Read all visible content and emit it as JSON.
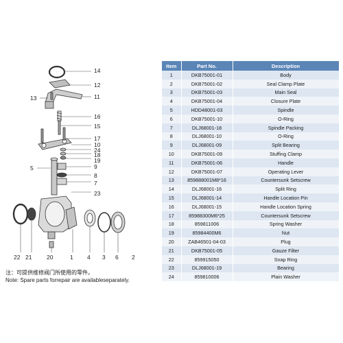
{
  "table": {
    "headers": [
      "Item",
      "Part No.",
      "Description"
    ],
    "rows": [
      [
        "1",
        "DKB75001-01",
        "Body"
      ],
      [
        "2",
        "DKB75001-02",
        "Seal Clamp Plate"
      ],
      [
        "3",
        "DKB75001-03",
        "Main Seal"
      ],
      [
        "4",
        "DKB75001-04",
        "Closure Plate"
      ],
      [
        "5",
        "HDD48001-03",
        "Spindle"
      ],
      [
        "6",
        "DKB75001-10",
        "O-Ring"
      ],
      [
        "7",
        "DLJ68001-18",
        "Spindle Packing"
      ],
      [
        "8",
        "DLJ68001-10",
        "O-Ring"
      ],
      [
        "9",
        "DLJ68001-09",
        "Split Bearing"
      ],
      [
        "10",
        "DKB75001-09",
        "Stuffing Clamp"
      ],
      [
        "11",
        "DKB75001-06",
        "Handle"
      ],
      [
        "12",
        "DKB75001-07",
        "Operating Lever"
      ],
      [
        "13",
        "859888001M8*16",
        "Countersunk Setscrew"
      ],
      [
        "14",
        "DLJ68001-16",
        "Split Ring"
      ],
      [
        "15",
        "DLJ68001-14",
        "Handle Location Pin"
      ],
      [
        "16",
        "DLJ68001-15",
        "Handle Location Spring"
      ],
      [
        "17",
        "85988300M6*25",
        "Countersunk Setscrew"
      ],
      [
        "18",
        "859811006",
        "Spring Washer"
      ],
      [
        "19",
        "85984400M6",
        "Nut"
      ],
      [
        "20",
        "ZAB46501-04-03",
        "Plug"
      ],
      [
        "21",
        "DKB75001-05",
        "Gauze Filter"
      ],
      [
        "22",
        "859915050",
        "Snap Ring"
      ],
      [
        "23",
        "DLJ68001-19",
        "Bearing"
      ],
      [
        "24",
        "859810006",
        "Plain Washer"
      ]
    ]
  },
  "callouts": {
    "c14": "14",
    "c12": "12",
    "c13": "13",
    "c11": "11",
    "c16": "16",
    "c15": "15",
    "c17": "17",
    "c10": "10",
    "c24": "24",
    "c18": "18",
    "c19": "19",
    "c5": "5",
    "c9": "9",
    "c8": "8",
    "c7": "7",
    "c23": "23",
    "b22": "22",
    "b21": "21",
    "b20": "20",
    "b1": "1",
    "b4": "4",
    "b3": "3",
    "b6": "6",
    "b2": "2"
  },
  "notes": {
    "chinese": "注：可提供维修阀门所使用的零件。",
    "english": "Note: Spare parts forrepair are availableseparately."
  },
  "colors": {
    "header_bg": "#5b85b7",
    "row_odd": "#dde6f1",
    "row_even": "#eff3f8"
  }
}
